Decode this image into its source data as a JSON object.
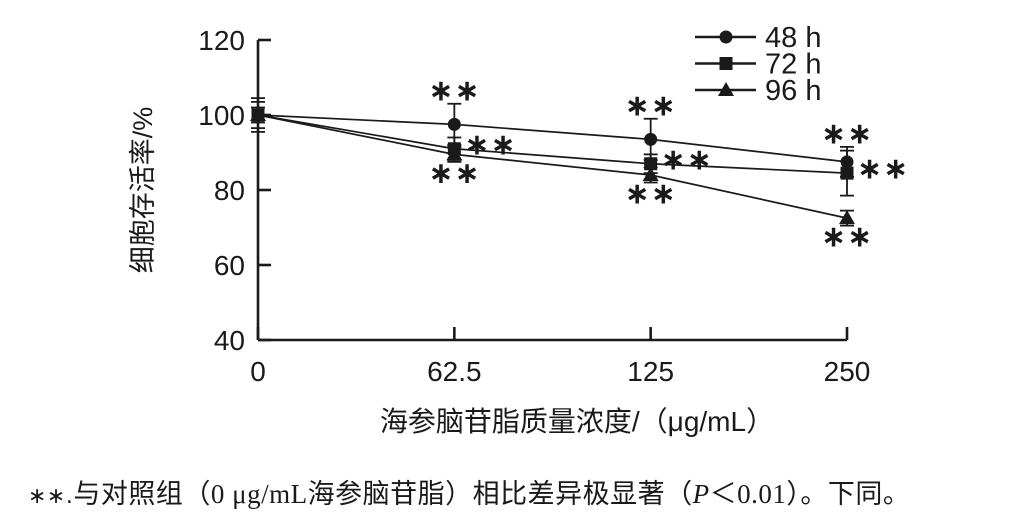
{
  "figure": {
    "background": "#ffffff",
    "ink_color": "#1a1a1a"
  },
  "chart_data": {
    "type": "line",
    "title": "",
    "xlabel": "海参脑苷脂质量浓度/（μg/mL）",
    "ylabel": "细胞存活率/%",
    "x_categories": [
      "0",
      "62.5",
      "125",
      "250"
    ],
    "x_values": [
      0,
      62.5,
      125,
      250
    ],
    "ylim": [
      40,
      120
    ],
    "yticks": [
      120,
      100,
      80,
      60,
      40
    ],
    "grid": false,
    "legend_position": "top-right",
    "series": [
      {
        "name": "48 h",
        "marker": "circle",
        "values": [
          100,
          97.5,
          93.5,
          87.5
        ],
        "errors": [
          4.5,
          5.5,
          5.5,
          4
        ],
        "sig": [
          "",
          "∗∗",
          "∗∗",
          "∗∗"
        ],
        "sig_position": "above"
      },
      {
        "name": "72 h",
        "marker": "square",
        "values": [
          100,
          91,
          87,
          84.5
        ],
        "errors": [
          3.5,
          3,
          2.5,
          6
        ],
        "sig": [
          "",
          "∗∗",
          "∗∗",
          "∗∗"
        ],
        "sig_position": "right"
      },
      {
        "name": "96 h",
        "marker": "triangle",
        "values": [
          100,
          89.5,
          84,
          72.5
        ],
        "errors": [
          2,
          2,
          2,
          2
        ],
        "sig": [
          "",
          "∗∗",
          "∗∗",
          "∗∗"
        ],
        "sig_position": "below"
      }
    ]
  },
  "caption": {
    "sig_marker": "∗∗.",
    "text_before_p": "与对照组（0 μg/mL海参脑苷脂）相比差异极显著（",
    "p_symbol": "P",
    "text_after_p": "＜0.01）。下同。"
  }
}
